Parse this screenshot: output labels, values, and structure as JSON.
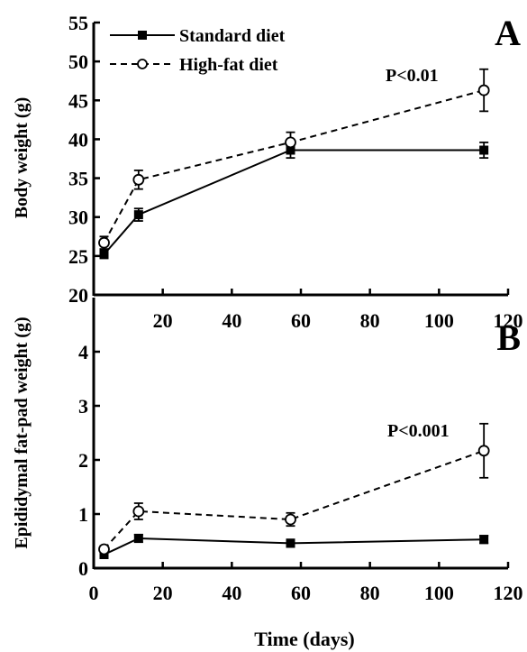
{
  "chart_data": [
    {
      "type": "line",
      "panel_label": "A",
      "ylabel": "Body weight (g)",
      "xlabel": "",
      "xlim": [
        0,
        120
      ],
      "ylim": [
        20,
        55
      ],
      "xticks": [
        20,
        40,
        60,
        80,
        100,
        120
      ],
      "yticks": [
        20,
        25,
        30,
        35,
        40,
        45,
        50,
        55
      ],
      "legend": {
        "position": "top-left"
      },
      "annotation": "P<0.01",
      "series": [
        {
          "name": "Standard diet",
          "style": "solid-filled-square",
          "x": [
            3,
            13,
            57,
            113
          ],
          "y": [
            25.2,
            30.3,
            38.6,
            38.6
          ],
          "err": [
            0.5,
            0.8,
            1.0,
            1.0
          ]
        },
        {
          "name": "High-fat diet",
          "style": "dashed-open-circle",
          "x": [
            3,
            13,
            57,
            113
          ],
          "y": [
            26.7,
            34.8,
            39.6,
            46.3
          ],
          "err": [
            0.8,
            1.2,
            1.3,
            2.7
          ]
        }
      ]
    },
    {
      "type": "line",
      "panel_label": "B",
      "ylabel": "Epididymal fat-pad weight (g)",
      "xlabel": "Time (days)",
      "xlim": [
        0,
        120
      ],
      "ylim": [
        0,
        5
      ],
      "xticks": [
        0,
        20,
        40,
        60,
        80,
        100,
        120
      ],
      "yticks": [
        0,
        1,
        2,
        3,
        4
      ],
      "annotation": "P<0.001",
      "series": [
        {
          "name": "Standard diet",
          "style": "solid-filled-square",
          "x": [
            3,
            13,
            57,
            113
          ],
          "y": [
            0.25,
            0.55,
            0.46,
            0.53
          ],
          "err": [
            0.05,
            0.07,
            0.07,
            0.07
          ]
        },
        {
          "name": "High-fat diet",
          "style": "dashed-open-circle",
          "x": [
            3,
            13,
            57,
            113
          ],
          "y": [
            0.35,
            1.05,
            0.9,
            2.17
          ],
          "err": [
            0.06,
            0.15,
            0.12,
            0.5
          ]
        }
      ]
    }
  ]
}
